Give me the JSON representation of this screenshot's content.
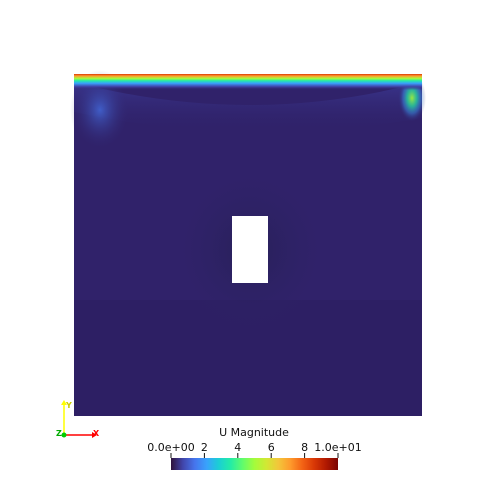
{
  "colorbar": {
    "title": "U Magnitude",
    "ticks": [
      {
        "label": "0.0e+00",
        "value": 0
      },
      {
        "label": "2",
        "value": 2
      },
      {
        "label": "4",
        "value": 4
      },
      {
        "label": "6",
        "value": 6
      },
      {
        "label": "8",
        "value": 8
      },
      {
        "label": "1.0e+01",
        "value": 10
      }
    ],
    "range": [
      0,
      10
    ],
    "colormap": [
      "#30123b",
      "#4145ab",
      "#4675ed",
      "#39a2fc",
      "#1bcfd4",
      "#24eca6",
      "#61fc6c",
      "#a4fc3b",
      "#d1e834",
      "#f3c63a",
      "#fe9b2d",
      "#f36315",
      "#d93806",
      "#b11901",
      "#7a0402"
    ]
  },
  "field": {
    "background_color": "#30226a",
    "lid_velocity": 10,
    "obstacle_color": "#ffffff"
  },
  "axes": {
    "x_label": "X",
    "y_label": "Y",
    "z_label": "Z",
    "x_color": "#ff0000",
    "y_color": "#ffff00",
    "z_color": "#00cc00"
  }
}
